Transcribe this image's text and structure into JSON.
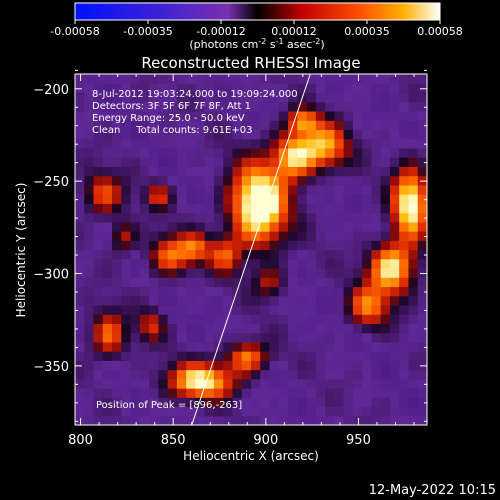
{
  "colorbar": {
    "ticks": [
      "-0.00058",
      "-0.00035",
      "-0.00012",
      "0.00012",
      "0.00035",
      "0.00058"
    ],
    "units_prefix": "(photons cm",
    "units_exp1": "-2",
    "units_mid": " s",
    "units_exp2": "-1",
    "units_mid2": " asec",
    "units_exp3": "-2",
    "units_suffix": ")",
    "range": [
      -0.00058,
      0.00058
    ]
  },
  "chart_data": {
    "type": "heatmap",
    "title": "Reconstructed RHESSI Image",
    "xlabel": "Heliocentric X (arcsec)",
    "ylabel": "Heliocentric Y (arcsec)",
    "xlim": [
      797,
      987
    ],
    "ylim": [
      -382,
      -192
    ],
    "x_ticks": [
      800,
      850,
      900,
      950
    ],
    "y_ticks": [
      -200,
      -250,
      -300,
      -350
    ],
    "limb_line": [
      [
        860,
        -382
      ],
      [
        924,
        -192
      ]
    ],
    "blobs": [
      {
        "x": 896,
        "y": -263,
        "sx": 11,
        "sy": 16,
        "v": 1.0
      },
      {
        "x": 915,
        "y": -236,
        "sx": 8,
        "sy": 9,
        "v": 0.7
      },
      {
        "x": 932,
        "y": -231,
        "sx": 9,
        "sy": 9,
        "v": 0.65
      },
      {
        "x": 920,
        "y": -217,
        "sx": 6,
        "sy": 5,
        "v": 0.55
      },
      {
        "x": 978,
        "y": -262,
        "sx": 7,
        "sy": 14,
        "v": 0.85
      },
      {
        "x": 968,
        "y": -297,
        "sx": 9,
        "sy": 10,
        "v": 0.8
      },
      {
        "x": 955,
        "y": -318,
        "sx": 8,
        "sy": 8,
        "v": 0.55
      },
      {
        "x": 865,
        "y": -358,
        "sx": 13,
        "sy": 7,
        "v": 0.8
      },
      {
        "x": 890,
        "y": -345,
        "sx": 8,
        "sy": 6,
        "v": 0.6
      },
      {
        "x": 848,
        "y": -290,
        "sx": 8,
        "sy": 8,
        "v": 0.55
      },
      {
        "x": 862,
        "y": -286,
        "sx": 6,
        "sy": 6,
        "v": 0.45
      },
      {
        "x": 878,
        "y": -290,
        "sx": 6,
        "sy": 7,
        "v": 0.45
      },
      {
        "x": 815,
        "y": -333,
        "sx": 7,
        "sy": 9,
        "v": 0.55
      },
      {
        "x": 812,
        "y": -257,
        "sx": 8,
        "sy": 8,
        "v": 0.5
      },
      {
        "x": 823,
        "y": -280,
        "sx": 5,
        "sy": 6,
        "v": 0.4
      },
      {
        "x": 838,
        "y": -328,
        "sx": 5,
        "sy": 6,
        "v": 0.4
      },
      {
        "x": 902,
        "y": -305,
        "sx": 6,
        "sy": 6,
        "v": 0.35
      },
      {
        "x": 842,
        "y": -258,
        "sx": 5,
        "sy": 5,
        "v": 0.4
      }
    ],
    "annotations": [
      "8-Jul-2012 19:03:24.000 to 19:09:24.000",
      "Detectors: 3F 5F 6F 7F 8F, Att 1",
      "Energy Range: 25.0 - 50.0 keV",
      "Clean     Total counts: 9.61E+03"
    ],
    "peak_label": "Position of Peak = [896,-263]",
    "peak": [
      896,
      -263
    ]
  },
  "footer": {
    "timestamp": "12-May-2022 10:15"
  }
}
